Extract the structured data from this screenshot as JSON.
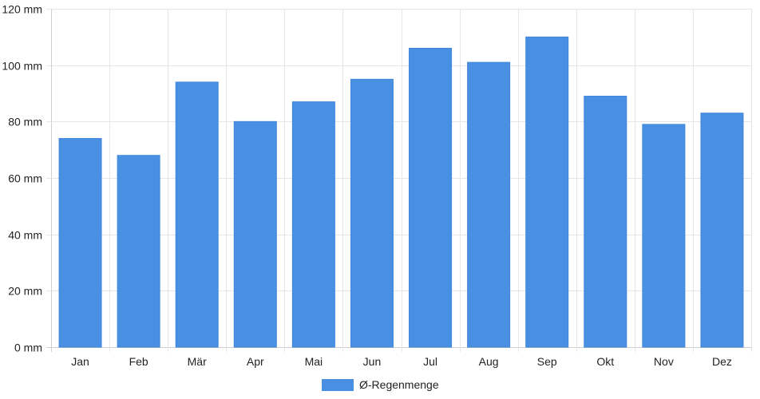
{
  "chart_data": {
    "type": "bar",
    "categories": [
      "Jan",
      "Feb",
      "Mär",
      "Apr",
      "Mai",
      "Jun",
      "Jul",
      "Aug",
      "Sep",
      "Okt",
      "Nov",
      "Dez"
    ],
    "series": [
      {
        "name": "Ø-Regenmenge",
        "color": "#4a90e2",
        "values": [
          74,
          68,
          94,
          80,
          87,
          95,
          106,
          101,
          110,
          89,
          79,
          83
        ]
      }
    ],
    "y_ticks": [
      "0 mm",
      "20 mm",
      "40 mm",
      "60 mm",
      "80 mm",
      "100 mm",
      "120 mm"
    ],
    "ylim": [
      0,
      120
    ],
    "grid": true,
    "legend": "bottom"
  }
}
